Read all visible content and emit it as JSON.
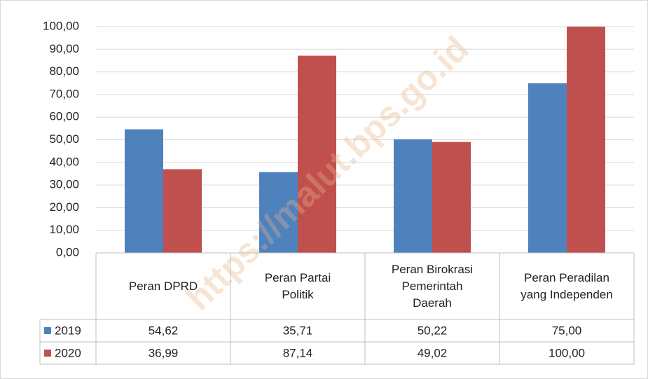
{
  "chart_data": {
    "type": "bar",
    "categories": [
      "Peran DPRD",
      "Peran Partai Politik",
      "Peran Birokrasi Pemerintah Daerah",
      "Peran Peradilan yang Independen"
    ],
    "series": [
      {
        "name": "2019",
        "color": "#4f81bd",
        "values": [
          54.62,
          35.71,
          50.22,
          75
        ],
        "value_labels": [
          "54,62",
          "35,71",
          "50,22",
          "75,00"
        ]
      },
      {
        "name": "2020",
        "color": "#c0504d",
        "values": [
          36.99,
          87.14,
          49.02,
          100
        ],
        "value_labels": [
          "36,99",
          "87,14",
          "49,02",
          "100,00"
        ]
      }
    ],
    "ylim": [
      0,
      100
    ],
    "yticks": [
      {
        "value": 0,
        "label": "0,00"
      },
      {
        "value": 10,
        "label": "10,00"
      },
      {
        "value": 20,
        "label": "20,00"
      },
      {
        "value": 30,
        "label": "30,00"
      },
      {
        "value": 40,
        "label": "40,00"
      },
      {
        "value": 50,
        "label": "50,00"
      },
      {
        "value": 60,
        "label": "60,00"
      },
      {
        "value": 70,
        "label": "70,00"
      },
      {
        "value": 80,
        "label": "80,00"
      },
      {
        "value": 90,
        "label": "90,00"
      },
      {
        "value": 100,
        "label": "100,00"
      }
    ],
    "grid": true,
    "data_table": true,
    "watermark": "https://malut.bps.go.id"
  }
}
